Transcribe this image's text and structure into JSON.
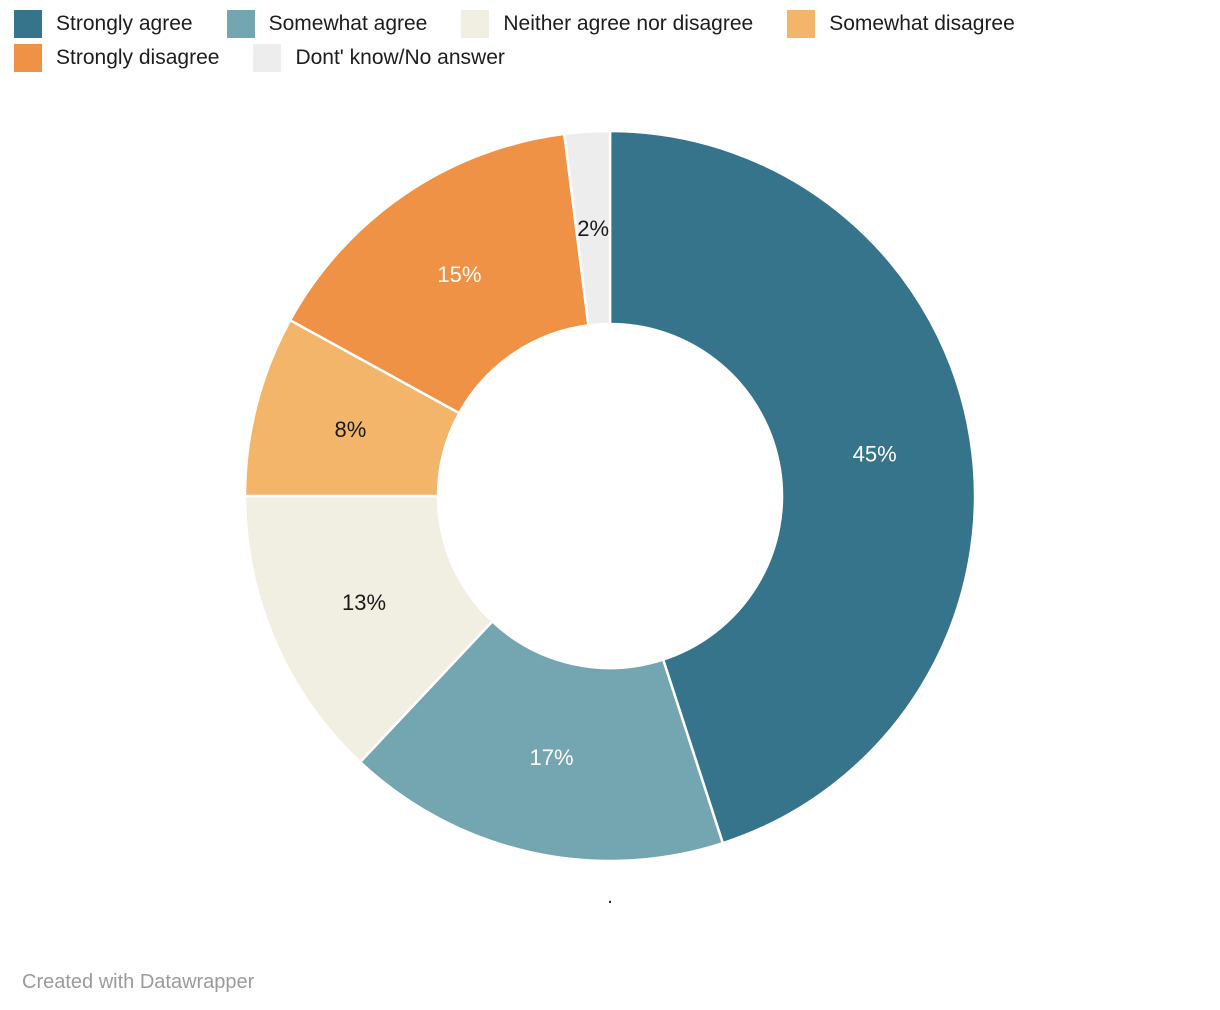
{
  "legend": {
    "position": "top",
    "items": [
      {
        "label": "Strongly agree",
        "color": "#35748b"
      },
      {
        "label": "Somewhat agree",
        "color": "#74a6b2"
      },
      {
        "label": "Neither agree nor disagree",
        "color": "#f1efe2"
      },
      {
        "label": "Somewhat disagree",
        "color": "#f2b569"
      },
      {
        "label": "Strongly disagree",
        "color": "#ef9245"
      },
      {
        "label": "Dont' know/No answer",
        "color": "#ededed"
      }
    ]
  },
  "chart_data": {
    "type": "pie",
    "subtype": "donut",
    "title": "",
    "categories": [
      "Strongly agree",
      "Somewhat agree",
      "Neither agree nor disagree",
      "Somewhat disagree",
      "Strongly disagree",
      "Dont' know/No answer"
    ],
    "values": [
      45,
      17,
      13,
      8,
      15,
      2
    ],
    "unit": "%",
    "labels": [
      "45%",
      "17%",
      "13%",
      "8%",
      "15%",
      "2%"
    ],
    "colors": [
      "#35748b",
      "#74a6b2",
      "#f1efe2",
      "#f2b569",
      "#ef9245",
      "#ededed"
    ],
    "label_colors": [
      "#ffffff",
      "#ffffff",
      "#1a1a1a",
      "#1a1a1a",
      "#ffffff",
      "#1a1a1a"
    ],
    "start_angle_deg": 0,
    "direction": "clockwise",
    "donut_hole_ratio": 0.47,
    "legend_position": "top",
    "slice_border_color": "#ffffff"
  },
  "note": {
    "text": "."
  },
  "footer": {
    "attribution": "Created with Datawrapper"
  }
}
